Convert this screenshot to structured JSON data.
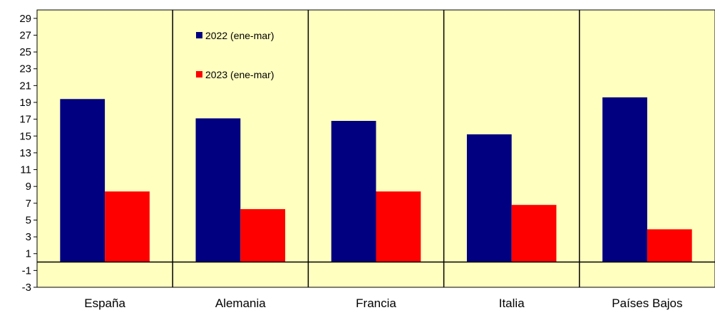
{
  "chart_data": {
    "type": "bar",
    "categories": [
      "España",
      "Alemania",
      "Francia",
      "Italia",
      "Países Bajos"
    ],
    "series": [
      {
        "name": "2022 (ene-mar)",
        "color": "#000080",
        "values": [
          19.4,
          17.1,
          16.8,
          15.2,
          19.6
        ]
      },
      {
        "name": "2023 (ene-mar)",
        "color": "#ff0000",
        "values": [
          8.4,
          6.3,
          8.4,
          6.8,
          3.9
        ]
      }
    ],
    "ylim": [
      -3,
      30
    ],
    "yticks": [
      "29",
      "27",
      "25",
      "23",
      "21",
      "19",
      "17",
      "15",
      "13",
      "11",
      "9",
      "7",
      "5",
      "3",
      "1",
      "-1",
      "-3"
    ],
    "legend_position": "top-inside",
    "plot_background": "#ffffc0",
    "grid": false
  }
}
